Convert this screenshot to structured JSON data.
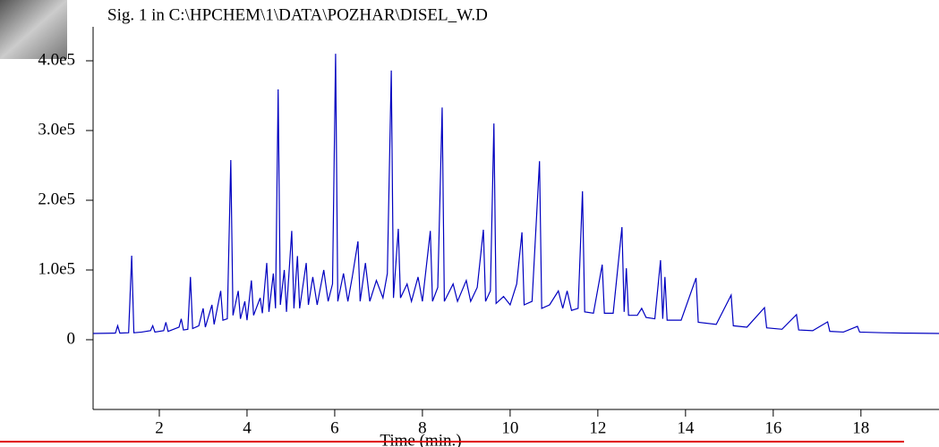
{
  "chart_data": {
    "type": "line",
    "title": "Sig. 1 in C:\\HPCHEM\\1\\DATA\\POZHAR\\DISEL_W.D",
    "x_label": "Time (min.)",
    "color": "#0000c0",
    "xlim": [
      0.49,
      19.78
    ],
    "ylim": [
      -100000,
      448700
    ],
    "xticks": [
      2,
      4,
      6,
      8,
      10,
      12,
      14,
      16,
      18
    ],
    "yticks": [
      {
        "value": 0,
        "label": "0"
      },
      {
        "value": 100000,
        "label": "1.0e5"
      },
      {
        "value": 200000,
        "label": "2.0e5"
      },
      {
        "value": 300000,
        "label": "3.0e5"
      },
      {
        "value": 400000,
        "label": "4.0e5"
      }
    ],
    "x": [
      0.49,
      1.0,
      1.05,
      1.1,
      1.3,
      1.37,
      1.42,
      1.6,
      1.8,
      1.85,
      1.9,
      2.1,
      2.15,
      2.2,
      2.45,
      2.5,
      2.55,
      2.65,
      2.71,
      2.76,
      2.9,
      3.0,
      3.05,
      3.2,
      3.25,
      3.4,
      3.45,
      3.55,
      3.63,
      3.68,
      3.8,
      3.85,
      3.95,
      4.0,
      4.1,
      4.15,
      4.3,
      4.35,
      4.45,
      4.5,
      4.6,
      4.65,
      4.71,
      4.76,
      4.85,
      4.9,
      5.02,
      5.07,
      5.15,
      5.2,
      5.35,
      5.4,
      5.5,
      5.6,
      5.75,
      5.85,
      5.95,
      6.02,
      6.07,
      6.2,
      6.3,
      6.4,
      6.53,
      6.58,
      6.7,
      6.8,
      6.95,
      7.1,
      7.2,
      7.29,
      7.34,
      7.45,
      7.5,
      7.65,
      7.75,
      7.9,
      8.0,
      8.18,
      8.23,
      8.35,
      8.45,
      8.5,
      8.7,
      8.8,
      9.0,
      9.1,
      9.25,
      9.39,
      9.44,
      9.55,
      9.63,
      9.68,
      9.85,
      10.0,
      10.15,
      10.27,
      10.32,
      10.5,
      10.67,
      10.72,
      10.9,
      11.1,
      11.2,
      11.3,
      11.4,
      11.55,
      11.65,
      11.7,
      11.9,
      12.1,
      12.15,
      12.35,
      12.55,
      12.6,
      12.65,
      12.7,
      12.9,
      13.0,
      13.1,
      13.3,
      13.43,
      13.48,
      13.53,
      13.58,
      13.9,
      14.24,
      14.29,
      14.7,
      15.04,
      15.09,
      15.4,
      15.8,
      15.85,
      16.2,
      16.53,
      16.58,
      16.9,
      17.24,
      17.29,
      17.6,
      17.92,
      17.97,
      18.5,
      19.0,
      19.78
    ],
    "values": [
      9000,
      9500,
      20000,
      9500,
      10000,
      120500,
      10000,
      11000,
      13000,
      20000,
      11000,
      13000,
      25000,
      12000,
      18000,
      30000,
      14000,
      15000,
      90000,
      16000,
      20000,
      45000,
      18000,
      50000,
      22000,
      70000,
      28000,
      30000,
      257700,
      35000,
      70000,
      30000,
      55000,
      28000,
      85000,
      35000,
      60000,
      38000,
      110000,
      40000,
      95000,
      45000,
      359000,
      50000,
      100000,
      40000,
      156000,
      45000,
      120000,
      45000,
      110000,
      50000,
      90000,
      50000,
      100000,
      55000,
      80000,
      410000,
      55000,
      95000,
      55000,
      90000,
      141000,
      55000,
      110000,
      55000,
      85000,
      60000,
      95000,
      386000,
      60000,
      159000,
      60000,
      80000,
      55000,
      90000,
      55000,
      156000,
      55000,
      75000,
      333000,
      55000,
      80000,
      55000,
      85000,
      55000,
      75000,
      157700,
      55000,
      70000,
      310000,
      52000,
      62000,
      50000,
      80000,
      154000,
      50000,
      55000,
      256000,
      45000,
      50000,
      70000,
      45000,
      70000,
      42000,
      45000,
      213000,
      40000,
      38000,
      107700,
      38000,
      38000,
      161500,
      40000,
      102600,
      35000,
      35000,
      45000,
      32000,
      30000,
      114000,
      30000,
      90000,
      28000,
      28000,
      88500,
      25000,
      22000,
      64000,
      20000,
      18000,
      46000,
      17000,
      15000,
      36000,
      14000,
      13000,
      25600,
      12000,
      11000,
      19200,
      11000,
      10000,
      9500,
      9000
    ]
  }
}
